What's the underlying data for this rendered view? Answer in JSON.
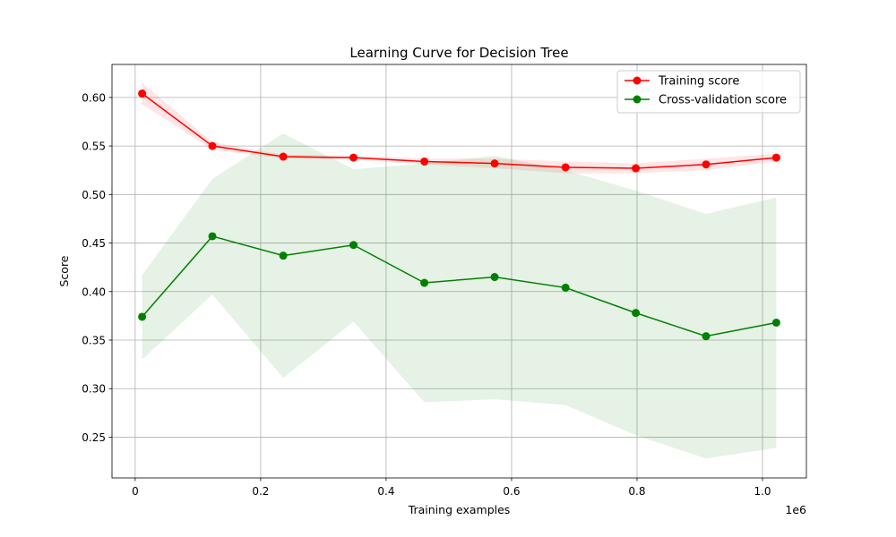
{
  "chart_data": {
    "type": "line",
    "title": "Learning Curve for Decision Tree",
    "xlabel": "Training examples",
    "ylabel": "Score",
    "x_offset_label": "1e6",
    "xlim": [
      -0.037,
      1.07
    ],
    "ylim": [
      0.208,
      0.634
    ],
    "x_ticks": [
      0,
      0.2,
      0.4,
      0.6,
      0.8,
      1.0
    ],
    "x_tick_labels": [
      "0",
      "0.2",
      "0.4",
      "0.6",
      "0.8",
      "1.0"
    ],
    "y_ticks": [
      0.25,
      0.3,
      0.35,
      0.4,
      0.45,
      0.5,
      0.55,
      0.6
    ],
    "y_tick_labels": [
      "0.25",
      "0.30",
      "0.35",
      "0.40",
      "0.45",
      "0.50",
      "0.55",
      "0.60"
    ],
    "grid": true,
    "legend_position": "top-right",
    "x": [
      0.011,
      0.123,
      0.236,
      0.348,
      0.461,
      0.573,
      0.686,
      0.798,
      0.91,
      1.022
    ],
    "series": [
      {
        "name": "Training score",
        "color": "#ff0000",
        "fill_color": "#ff0000",
        "values": [
          0.604,
          0.55,
          0.539,
          0.538,
          0.534,
          0.532,
          0.528,
          0.527,
          0.531,
          0.538
        ],
        "lower": [
          0.593,
          0.546,
          0.537,
          0.536,
          0.531,
          0.527,
          0.522,
          0.522,
          0.525,
          0.534
        ],
        "upper": [
          0.615,
          0.554,
          0.541,
          0.54,
          0.537,
          0.537,
          0.534,
          0.532,
          0.537,
          0.542
        ]
      },
      {
        "name": "Cross-validation score",
        "color": "#008000",
        "fill_color": "#008000",
        "values": [
          0.374,
          0.457,
          0.437,
          0.448,
          0.409,
          0.415,
          0.404,
          0.378,
          0.354,
          0.368
        ],
        "lower": [
          0.33,
          0.397,
          0.311,
          0.369,
          0.286,
          0.289,
          0.283,
          0.252,
          0.228,
          0.239
        ],
        "upper": [
          0.417,
          0.516,
          0.563,
          0.526,
          0.532,
          0.54,
          0.525,
          0.504,
          0.48,
          0.497
        ]
      }
    ]
  }
}
